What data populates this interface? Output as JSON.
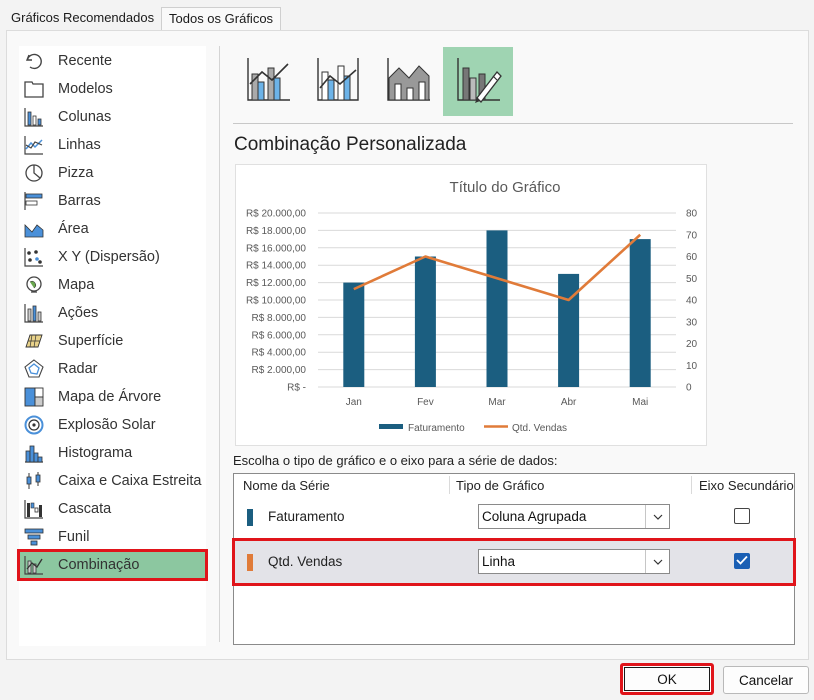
{
  "tabs": [
    {
      "label": "Gráficos Recomendados",
      "active": false
    },
    {
      "label": "Todos os Gráficos",
      "active": true
    }
  ],
  "sidebar": {
    "items": [
      {
        "label": "Recente",
        "icon": "undo-icon"
      },
      {
        "label": "Modelos",
        "icon": "folder-icon"
      },
      {
        "label": "Colunas",
        "icon": "column-chart-icon"
      },
      {
        "label": "Linhas",
        "icon": "line-chart-icon"
      },
      {
        "label": "Pizza",
        "icon": "pie-chart-icon"
      },
      {
        "label": "Barras",
        "icon": "bar-chart-icon"
      },
      {
        "label": "Área",
        "icon": "area-chart-icon"
      },
      {
        "label": "X Y (Dispersão)",
        "icon": "scatter-chart-icon"
      },
      {
        "label": "Mapa",
        "icon": "map-chart-icon"
      },
      {
        "label": "Ações",
        "icon": "stock-chart-icon"
      },
      {
        "label": "Superfície",
        "icon": "surface-chart-icon"
      },
      {
        "label": "Radar",
        "icon": "radar-chart-icon"
      },
      {
        "label": "Mapa de Árvore",
        "icon": "treemap-chart-icon"
      },
      {
        "label": "Explosão Solar",
        "icon": "sunburst-chart-icon"
      },
      {
        "label": "Histograma",
        "icon": "histogram-chart-icon"
      },
      {
        "label": "Caixa e Caixa Estreita",
        "icon": "box-whisker-chart-icon"
      },
      {
        "label": "Cascata",
        "icon": "waterfall-chart-icon"
      },
      {
        "label": "Funil",
        "icon": "funnel-chart-icon"
      },
      {
        "label": "Combinação",
        "icon": "combo-chart-icon",
        "selected": true
      }
    ]
  },
  "subtypes": [
    {
      "icon": "clustered-column-line-icon",
      "selected": false
    },
    {
      "icon": "clustered-column-line-secondary-axis-icon",
      "selected": false
    },
    {
      "icon": "stacked-area-clustered-column-icon",
      "selected": false
    },
    {
      "icon": "custom-combination-icon",
      "selected": true
    }
  ],
  "section_title": "Combinação Personalizada",
  "chart_data": {
    "type": "bar",
    "title": "Título do Gráfico",
    "categories": [
      "Jan",
      "Fev",
      "Mar",
      "Abr",
      "Mai"
    ],
    "series": [
      {
        "name": "Faturamento",
        "type": "bar",
        "axis": "primary",
        "color": "#1b5e80",
        "values": [
          12000,
          15000,
          18000,
          13000,
          17000
        ]
      },
      {
        "name": "Qtd. Vendas",
        "type": "line",
        "axis": "secondary",
        "color": "#e07b39",
        "values": [
          45,
          60,
          50,
          40,
          70
        ]
      }
    ],
    "y_left": {
      "min": 0,
      "max": 20000,
      "step": 2000,
      "tick_labels": [
        "R$ -",
        "R$ 2.000,00",
        "R$ 4.000,00",
        "R$ 6.000,00",
        "R$ 8.000,00",
        "R$ 10.000,00",
        "R$ 12.000,00",
        "R$ 14.000,00",
        "R$ 16.000,00",
        "R$ 18.000,00",
        "R$ 20.000,00"
      ]
    },
    "y_right": {
      "min": 0,
      "max": 80,
      "step": 10,
      "tick_labels": [
        "0",
        "10",
        "20",
        "30",
        "40",
        "50",
        "60",
        "70",
        "80"
      ]
    },
    "grid": true,
    "legend": "bottom"
  },
  "series_prompt": "Escolha o tipo de gráfico e o eixo para a série de dados:",
  "series_table": {
    "headers": {
      "name": "Nome da Série",
      "type": "Tipo de Gráfico",
      "secondary": "Eixo Secundário"
    },
    "rows": [
      {
        "name": "Faturamento",
        "color": "#1b5e80",
        "chart_type": "Coluna Agrupada",
        "secondary_axis": false,
        "selected": false
      },
      {
        "name": "Qtd. Vendas",
        "color": "#e07b39",
        "chart_type": "Linha",
        "secondary_axis": true,
        "selected": true
      }
    ]
  },
  "buttons": {
    "ok": "OK",
    "cancel": "Cancelar"
  }
}
